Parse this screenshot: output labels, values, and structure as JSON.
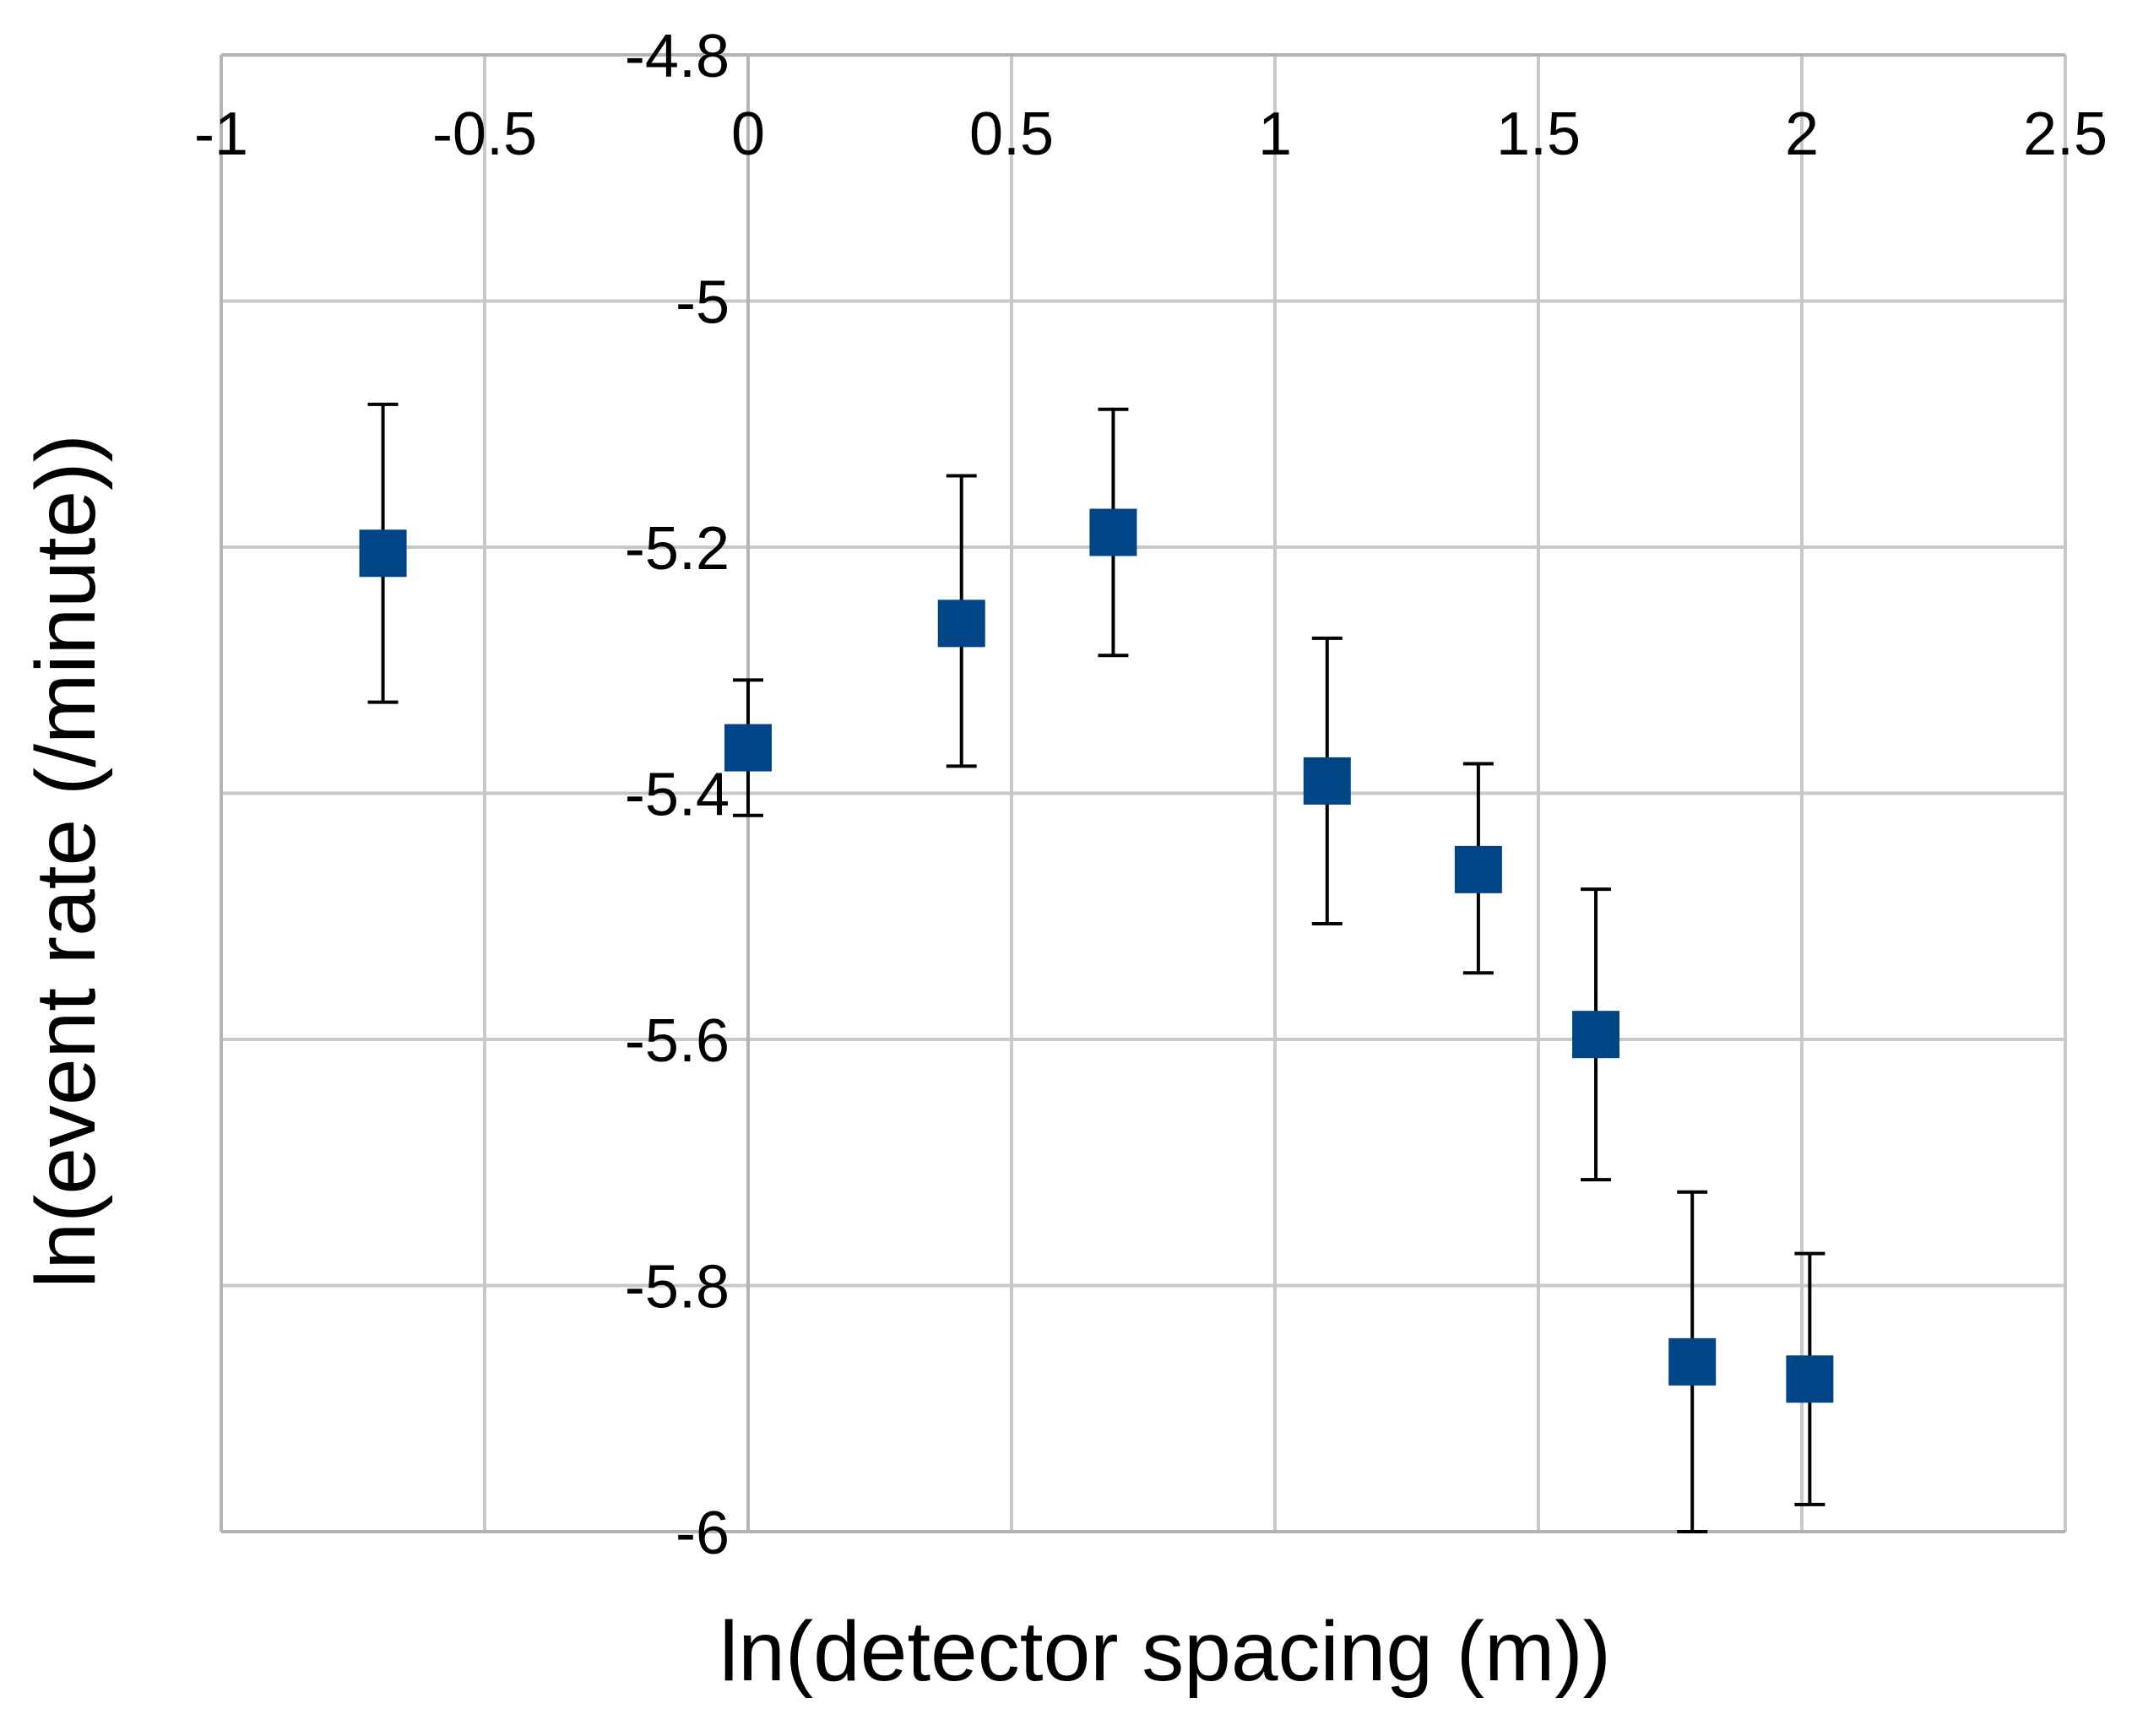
{
  "chart_data": {
    "type": "scatter",
    "title": "",
    "xlabel": "ln(detector spacing (m))",
    "ylabel": "ln(event rate (/minute))",
    "xlim": [
      -1,
      2.5
    ],
    "ylim": [
      -6,
      -4.8
    ],
    "x_ticks": [
      -1,
      -0.5,
      0,
      0.5,
      1,
      1.5,
      2,
      2.5
    ],
    "y_ticks": [
      -4.8,
      -5,
      -5.2,
      -5.4,
      -5.6,
      -5.8,
      -6
    ],
    "x_tick_labels": [
      "-1",
      "-0.5",
      "0",
      "0.5",
      "1",
      "1.5",
      "2",
      "2.5"
    ],
    "y_tick_labels": [
      "-4.8",
      "-5",
      "-5.2",
      "-5.4",
      "-5.6",
      "-5.8",
      "-6"
    ],
    "x_axis_position": "top",
    "grid": true,
    "legend": "none",
    "marker": "square",
    "marker_color": "#004586",
    "series": [
      {
        "points": [
          {
            "x": -0.693,
            "y": -5.205,
            "y_low": -5.326,
            "y_high": -5.084
          },
          {
            "x": 0.0,
            "y": -5.363,
            "y_low": -5.418,
            "y_high": -5.308
          },
          {
            "x": 0.405,
            "y": -5.262,
            "y_low": -5.378,
            "y_high": -5.142
          },
          {
            "x": 0.693,
            "y": -5.188,
            "y_low": -5.288,
            "y_high": -5.088
          },
          {
            "x": 1.099,
            "y": -5.39,
            "y_low": -5.506,
            "y_high": -5.274
          },
          {
            "x": 1.386,
            "y": -5.462,
            "y_low": -5.546,
            "y_high": -5.376
          },
          {
            "x": 1.609,
            "y": -5.596,
            "y_low": -5.714,
            "y_high": -5.478
          },
          {
            "x": 1.792,
            "y": -5.862,
            "y_low": -6.0,
            "y_high": -5.724
          },
          {
            "x": 2.015,
            "y": -5.876,
            "y_low": -5.978,
            "y_high": -5.774
          }
        ]
      }
    ]
  }
}
